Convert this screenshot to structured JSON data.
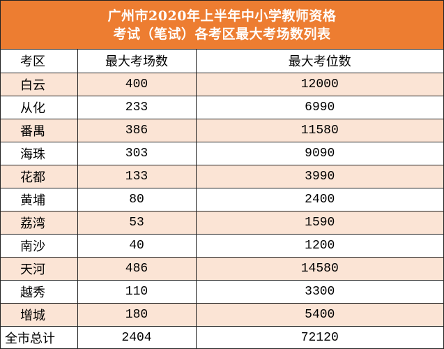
{
  "title": {
    "line1": "广州市2020年上半年中小学教师资格",
    "line2": "考试（笔试）各考区最大考场数列表"
  },
  "headers": [
    "考区",
    "最大考场数",
    "最大考位数"
  ],
  "rows": [
    {
      "district": "白云",
      "rooms": "400",
      "seats": "12000"
    },
    {
      "district": "从化",
      "rooms": "233",
      "seats": "6990"
    },
    {
      "district": "番禺",
      "rooms": "386",
      "seats": "11580"
    },
    {
      "district": "海珠",
      "rooms": "303",
      "seats": "9090"
    },
    {
      "district": "花都",
      "rooms": "133",
      "seats": "3990"
    },
    {
      "district": "黄埔",
      "rooms": "80",
      "seats": "2400"
    },
    {
      "district": "荔湾",
      "rooms": "53",
      "seats": "1590"
    },
    {
      "district": "南沙",
      "rooms": "40",
      "seats": "1200"
    },
    {
      "district": "天河",
      "rooms": "486",
      "seats": "14580"
    },
    {
      "district": "越秀",
      "rooms": "110",
      "seats": "3300"
    },
    {
      "district": "增城",
      "rooms": "180",
      "seats": "5400"
    }
  ],
  "total": {
    "label": "全市总计",
    "rooms": "2404",
    "seats": "72120"
  },
  "colors": {
    "title_background": "#ed7d31",
    "title_text": "#ffffff",
    "shaded_row": "#fbe4d5",
    "border": "#222222"
  }
}
